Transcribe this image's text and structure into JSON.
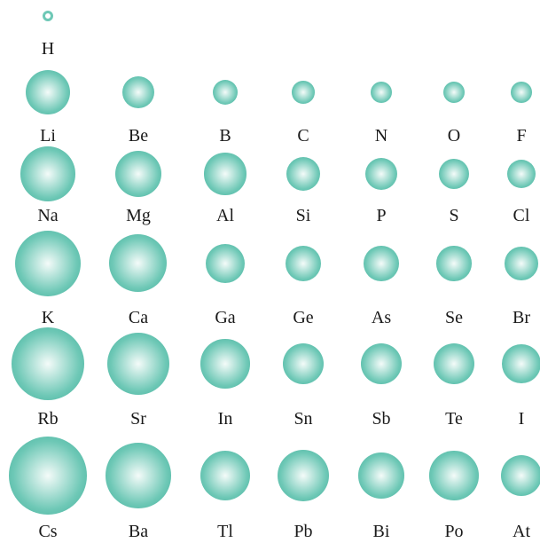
{
  "colors": {
    "sphere_edge": "#3fae9a",
    "sphere_mid": "#6ec8b6",
    "sphere_highlight": "#f4fbf9",
    "label_text": "#1a1a1a"
  },
  "rows": [
    {
      "name": "period-1",
      "elements": [
        {
          "symbol": "H",
          "radius_pm": 37
        }
      ]
    },
    {
      "name": "period-2",
      "elements": [
        {
          "symbol": "Li",
          "radius_pm": 152
        },
        {
          "symbol": "Be",
          "radius_pm": 112
        },
        {
          "symbol": "B",
          "radius_pm": 85
        },
        {
          "symbol": "C",
          "radius_pm": 77
        },
        {
          "symbol": "N",
          "radius_pm": 75
        },
        {
          "symbol": "O",
          "radius_pm": 73
        },
        {
          "symbol": "F",
          "radius_pm": 72
        }
      ]
    },
    {
      "name": "period-3",
      "elements": [
        {
          "symbol": "Na",
          "radius_pm": 186
        },
        {
          "symbol": "Mg",
          "radius_pm": 160
        },
        {
          "symbol": "Al",
          "radius_pm": 143
        },
        {
          "symbol": "Si",
          "radius_pm": 118
        },
        {
          "symbol": "P",
          "radius_pm": 110
        },
        {
          "symbol": "S",
          "radius_pm": 103
        },
        {
          "symbol": "Cl",
          "radius_pm": 99
        }
      ]
    },
    {
      "name": "period-4",
      "elements": [
        {
          "symbol": "K",
          "radius_pm": 227
        },
        {
          "symbol": "Ca",
          "radius_pm": 197
        },
        {
          "symbol": "Ga",
          "radius_pm": 135
        },
        {
          "symbol": "Ge",
          "radius_pm": 122
        },
        {
          "symbol": "As",
          "radius_pm": 120
        },
        {
          "symbol": "Se",
          "radius_pm": 119
        },
        {
          "symbol": "Br",
          "radius_pm": 114
        }
      ]
    },
    {
      "name": "period-5",
      "elements": [
        {
          "symbol": "Rb",
          "radius_pm": 248
        },
        {
          "symbol": "Sr",
          "radius_pm": 215
        },
        {
          "symbol": "In",
          "radius_pm": 167
        },
        {
          "symbol": "Sn",
          "radius_pm": 140
        },
        {
          "symbol": "Sb",
          "radius_pm": 140
        },
        {
          "symbol": "Te",
          "radius_pm": 142
        },
        {
          "symbol": "I",
          "radius_pm": 133
        }
      ]
    },
    {
      "name": "period-6",
      "elements": [
        {
          "symbol": "Cs",
          "radius_pm": 265
        },
        {
          "symbol": "Ba",
          "radius_pm": 222
        },
        {
          "symbol": "Tl",
          "radius_pm": 170
        },
        {
          "symbol": "Pb",
          "radius_pm": 175
        },
        {
          "symbol": "Bi",
          "radius_pm": 155
        },
        {
          "symbol": "Po",
          "radius_pm": 167
        },
        {
          "symbol": "At",
          "radius_pm": 140
        }
      ]
    }
  ]
}
